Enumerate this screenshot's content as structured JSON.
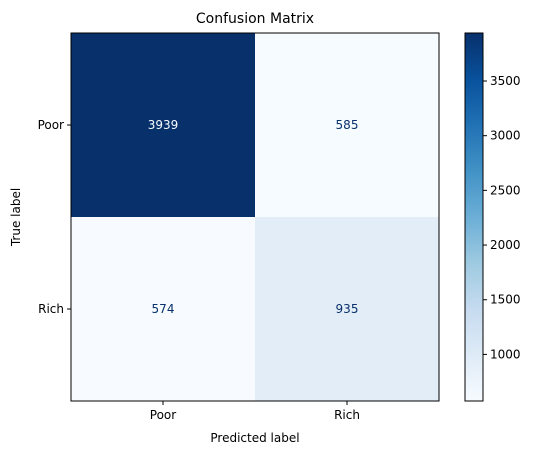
{
  "chart_data": {
    "type": "heatmap",
    "title": "Confusion Matrix",
    "xlabel": "Predicted label",
    "ylabel": "True label",
    "x_categories": [
      "Poor",
      "Rich"
    ],
    "y_categories": [
      "Poor",
      "Rich"
    ],
    "values": [
      [
        3939,
        585
      ],
      [
        574,
        935
      ]
    ],
    "colormap": "Blues",
    "color_range": [
      574,
      3939
    ],
    "colorbar_ticks": [
      1000,
      1500,
      2000,
      2500,
      3000,
      3500
    ],
    "annotation_colors": {
      "light_cell": "#08306b",
      "dark_cell": "#f7fbff"
    }
  }
}
